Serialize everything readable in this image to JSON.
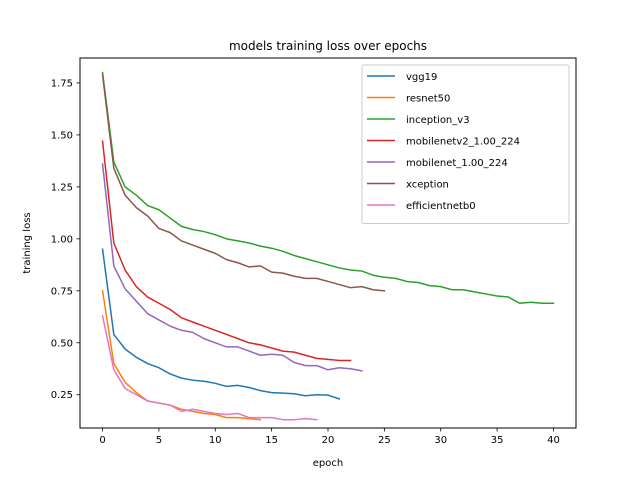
{
  "chart_data": {
    "type": "line",
    "title": "models training loss over epochs",
    "xlabel": "epoch",
    "ylabel": "training loss",
    "xlim": [
      -2,
      42
    ],
    "ylim": [
      0.09,
      1.87
    ],
    "xticks": [
      0,
      5,
      10,
      15,
      20,
      25,
      30,
      35,
      40
    ],
    "yticks": [
      0.25,
      0.5,
      0.75,
      1.0,
      1.25,
      1.5,
      1.75
    ],
    "ytick_labels": [
      "0.25",
      "0.50",
      "0.75",
      "1.00",
      "1.25",
      "1.50",
      "1.75"
    ],
    "xtick_labels": [
      "0",
      "5",
      "10",
      "15",
      "20",
      "25",
      "30",
      "35",
      "40"
    ],
    "grid": false,
    "legend_position": "top-right",
    "series": [
      {
        "name": "vgg19",
        "color": "#1f77b4",
        "values": [
          0.95,
          0.54,
          0.47,
          0.43,
          0.4,
          0.38,
          0.35,
          0.33,
          0.32,
          0.315,
          0.305,
          0.29,
          0.295,
          0.285,
          0.27,
          0.26,
          0.258,
          0.255,
          0.245,
          0.25,
          0.248,
          0.23
        ]
      },
      {
        "name": "resnet50",
        "color": "#ff7f0e",
        "values": [
          0.75,
          0.4,
          0.31,
          0.26,
          0.22,
          0.21,
          0.2,
          0.18,
          0.17,
          0.16,
          0.155,
          0.14,
          0.14,
          0.135,
          0.13
        ]
      },
      {
        "name": "inception_v3",
        "color": "#2ca02c",
        "values": [
          1.8,
          1.37,
          1.25,
          1.21,
          1.16,
          1.14,
          1.1,
          1.06,
          1.045,
          1.035,
          1.02,
          1.0,
          0.99,
          0.98,
          0.965,
          0.955,
          0.94,
          0.92,
          0.905,
          0.89,
          0.875,
          0.86,
          0.85,
          0.845,
          0.825,
          0.815,
          0.81,
          0.795,
          0.79,
          0.775,
          0.77,
          0.755,
          0.755,
          0.745,
          0.735,
          0.725,
          0.72,
          0.69,
          0.695,
          0.69,
          0.69
        ]
      },
      {
        "name": "mobilenetv2_1.00_224",
        "color": "#d62728",
        "values": [
          1.47,
          0.98,
          0.85,
          0.77,
          0.72,
          0.69,
          0.66,
          0.62,
          0.6,
          0.58,
          0.56,
          0.54,
          0.52,
          0.5,
          0.49,
          0.475,
          0.46,
          0.455,
          0.44,
          0.425,
          0.42,
          0.415,
          0.415
        ]
      },
      {
        "name": "mobilenet_1.00_224",
        "color": "#9467bd",
        "values": [
          1.36,
          0.87,
          0.76,
          0.7,
          0.64,
          0.61,
          0.58,
          0.56,
          0.55,
          0.52,
          0.5,
          0.48,
          0.48,
          0.46,
          0.44,
          0.445,
          0.44,
          0.405,
          0.39,
          0.39,
          0.37,
          0.38,
          0.375,
          0.365
        ]
      },
      {
        "name": "xception",
        "color": "#8c564b",
        "values": [
          1.79,
          1.34,
          1.21,
          1.15,
          1.11,
          1.05,
          1.03,
          0.99,
          0.97,
          0.95,
          0.93,
          0.9,
          0.885,
          0.865,
          0.87,
          0.84,
          0.835,
          0.82,
          0.81,
          0.81,
          0.795,
          0.78,
          0.765,
          0.77,
          0.755,
          0.75
        ]
      },
      {
        "name": "efficientnetb0",
        "color": "#e377c2",
        "values": [
          0.63,
          0.37,
          0.28,
          0.25,
          0.22,
          0.21,
          0.2,
          0.17,
          0.18,
          0.17,
          0.16,
          0.155,
          0.16,
          0.14,
          0.14,
          0.14,
          0.13,
          0.13,
          0.135,
          0.13
        ]
      }
    ]
  }
}
